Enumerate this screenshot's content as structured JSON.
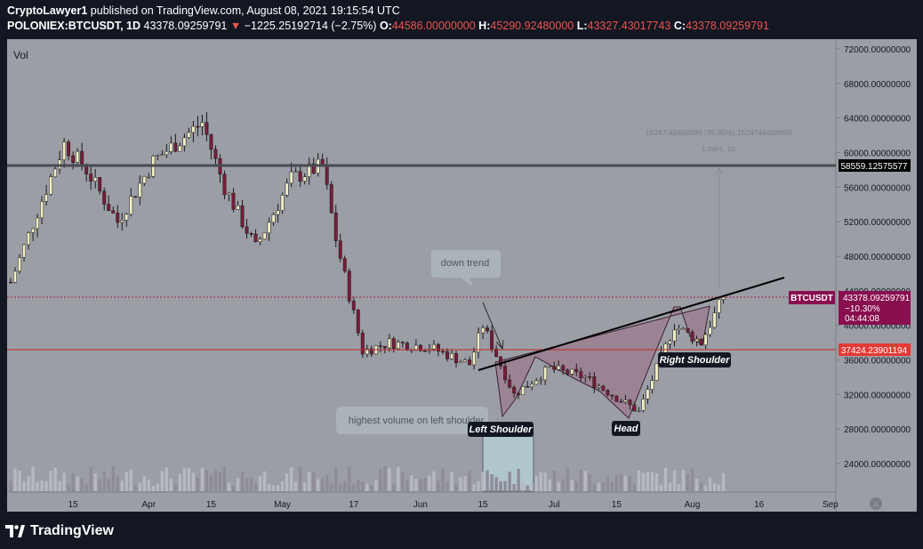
{
  "header": {
    "publisher": "CryptoLawyer1",
    "published_text": "published on TradingView.com, August 08, 2021 19:15:54 UTC",
    "symbol": "POLONIEX:BTCUSDT, 1D",
    "last_price": "43378.09259791",
    "change_arrow": "▼",
    "change": "−1225.25192714 (−2.75%)",
    "o_label": "O:",
    "o": "44586.00000000",
    "h_label": "H:",
    "h": "45290.92480000",
    "l_label": "L:",
    "l": "43327.43017743",
    "c_label": "C:",
    "c": "43378.09259791"
  },
  "pane": {
    "vol_label": "Vol"
  },
  "colors": {
    "background": "#9c9ea6",
    "up": "#f2eec3",
    "down": "#7a1b3a",
    "accent_red": "#ef5350",
    "symbol_tag": "#880e4f"
  },
  "chart_data": {
    "type": "candlestick",
    "y_axis": {
      "range": [
        20000,
        74000
      ],
      "ticks": [
        "72000.00000000",
        "68000.00000000",
        "64000.00000000",
        "60000.00000000",
        "56000.00000000",
        "52000.00000000",
        "48000.00000000",
        "44000.00000000",
        "40000.00000000",
        "36000.00000000",
        "32000.00000000",
        "28000.00000000",
        "24000.00000000"
      ]
    },
    "x_axis": {
      "ticks": [
        "15",
        "Apr",
        "15",
        "May",
        "17",
        "Jun",
        "15",
        "Jul",
        "15",
        "Aug",
        "16",
        "Sep"
      ]
    },
    "ohlc_keypoints": [
      {
        "date": "2021-03-01",
        "price": 45000
      },
      {
        "date": "2021-03-08",
        "price": 54500
      },
      {
        "date": "2021-03-13",
        "price": 61000
      },
      {
        "date": "2021-03-18",
        "price": 58000
      },
      {
        "date": "2021-03-25",
        "price": 52000
      },
      {
        "date": "2021-04-02",
        "price": 59000
      },
      {
        "date": "2021-04-13",
        "price": 63500
      },
      {
        "date": "2021-04-18",
        "price": 56000
      },
      {
        "date": "2021-04-25",
        "price": 49000
      },
      {
        "date": "2021-05-03",
        "price": 57000
      },
      {
        "date": "2021-05-10",
        "price": 58500
      },
      {
        "date": "2021-05-13",
        "price": 50000
      },
      {
        "date": "2021-05-19",
        "price": 37000
      },
      {
        "date": "2021-05-25",
        "price": 38000
      },
      {
        "date": "2021-06-03",
        "price": 37500
      },
      {
        "date": "2021-06-12",
        "price": 35500
      },
      {
        "date": "2021-06-15",
        "price": 40000
      },
      {
        "date": "2021-06-22",
        "price": 32000
      },
      {
        "date": "2021-06-30",
        "price": 35000
      },
      {
        "date": "2021-07-08",
        "price": 34000
      },
      {
        "date": "2021-07-20",
        "price": 30000
      },
      {
        "date": "2021-07-28",
        "price": 40000
      },
      {
        "date": "2021-08-03",
        "price": 38000
      },
      {
        "date": "2021-08-08",
        "price": 43378
      }
    ],
    "horizontal_lines": [
      {
        "label": "58559.12575577",
        "price": 58559.12575577
      },
      {
        "label": "37424.23901194",
        "price": 37424.23901194
      }
    ],
    "price_tag": {
      "symbol": "BTCUSDT",
      "price": "43378.09259791",
      "change_pct": "−10.30%",
      "countdown": "04:44:08"
    },
    "annotations": {
      "down_trend": "down trend",
      "volume_note": "highest volume on left shoulder",
      "left_shoulder": "Left Shoulder",
      "head": "Head",
      "right_shoulder": "Right Shoulder",
      "measure_top": "15247.48468899 (35.35%) 1524748468899",
      "measure_bottom": "1 bars, 1d"
    },
    "axis_badge": "A"
  },
  "footer": {
    "brand": "TradingView"
  }
}
